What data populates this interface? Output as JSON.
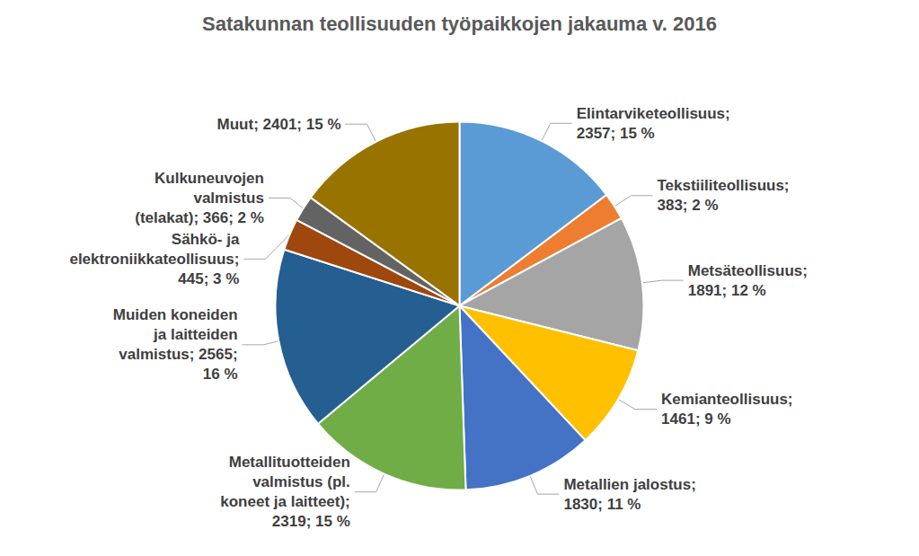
{
  "chart_data": {
    "type": "pie",
    "title": "Satakunnan teollisuuden työpaikkojen jakauma v. 2016",
    "categories": [
      "Elintarviketeollisuus",
      "Tekstiiliteollisuus",
      "Metsäteollisuus",
      "Kemianteollisuus",
      "Metallien jalostus",
      "Metallituotteiden valmistus (pl. koneet ja laitteet)",
      "Muiden koneiden ja laitteiden valmistus",
      "Sähkö- ja elektroniikkateollisuus",
      "Kulkuneuvojen valmistus (telakat)",
      "Muut"
    ],
    "values": [
      2357,
      383,
      1891,
      1461,
      1830,
      2319,
      2565,
      445,
      366,
      2401
    ],
    "percents": [
      15,
      2,
      12,
      9,
      11,
      15,
      16,
      3,
      2,
      15
    ],
    "value_labels": [
      "Elintarviketeollisuus;\n2357; 15 %",
      "Tekstiiliteollisuus;\n383; 2 %",
      "Metsäteollisuus;\n1891; 12 %",
      "Kemianteollisuus;\n1461; 9 %",
      "Metallien jalostus;\n1830; 11 %",
      "Metallituotteiden\nvalmistus (pl.\nkoneet ja laitteet);\n2319; 15 %",
      "Muiden koneiden\nja laitteiden\nvalmistus; 2565;\n16 %",
      "Sähkö- ja\nelektroniikkateollisuus;\n445; 3 %",
      "Kulkuneuvojen\nvalmistus\n(telakat); 366; 2 %",
      "Muut; 2401; 15 %"
    ],
    "colors": [
      "#5b9bd5",
      "#ed7d31",
      "#a5a5a5",
      "#ffc000",
      "#4472c4",
      "#70ad47",
      "#255e91",
      "#9e480e",
      "#636363",
      "#997300"
    ],
    "data_labels": true
  }
}
